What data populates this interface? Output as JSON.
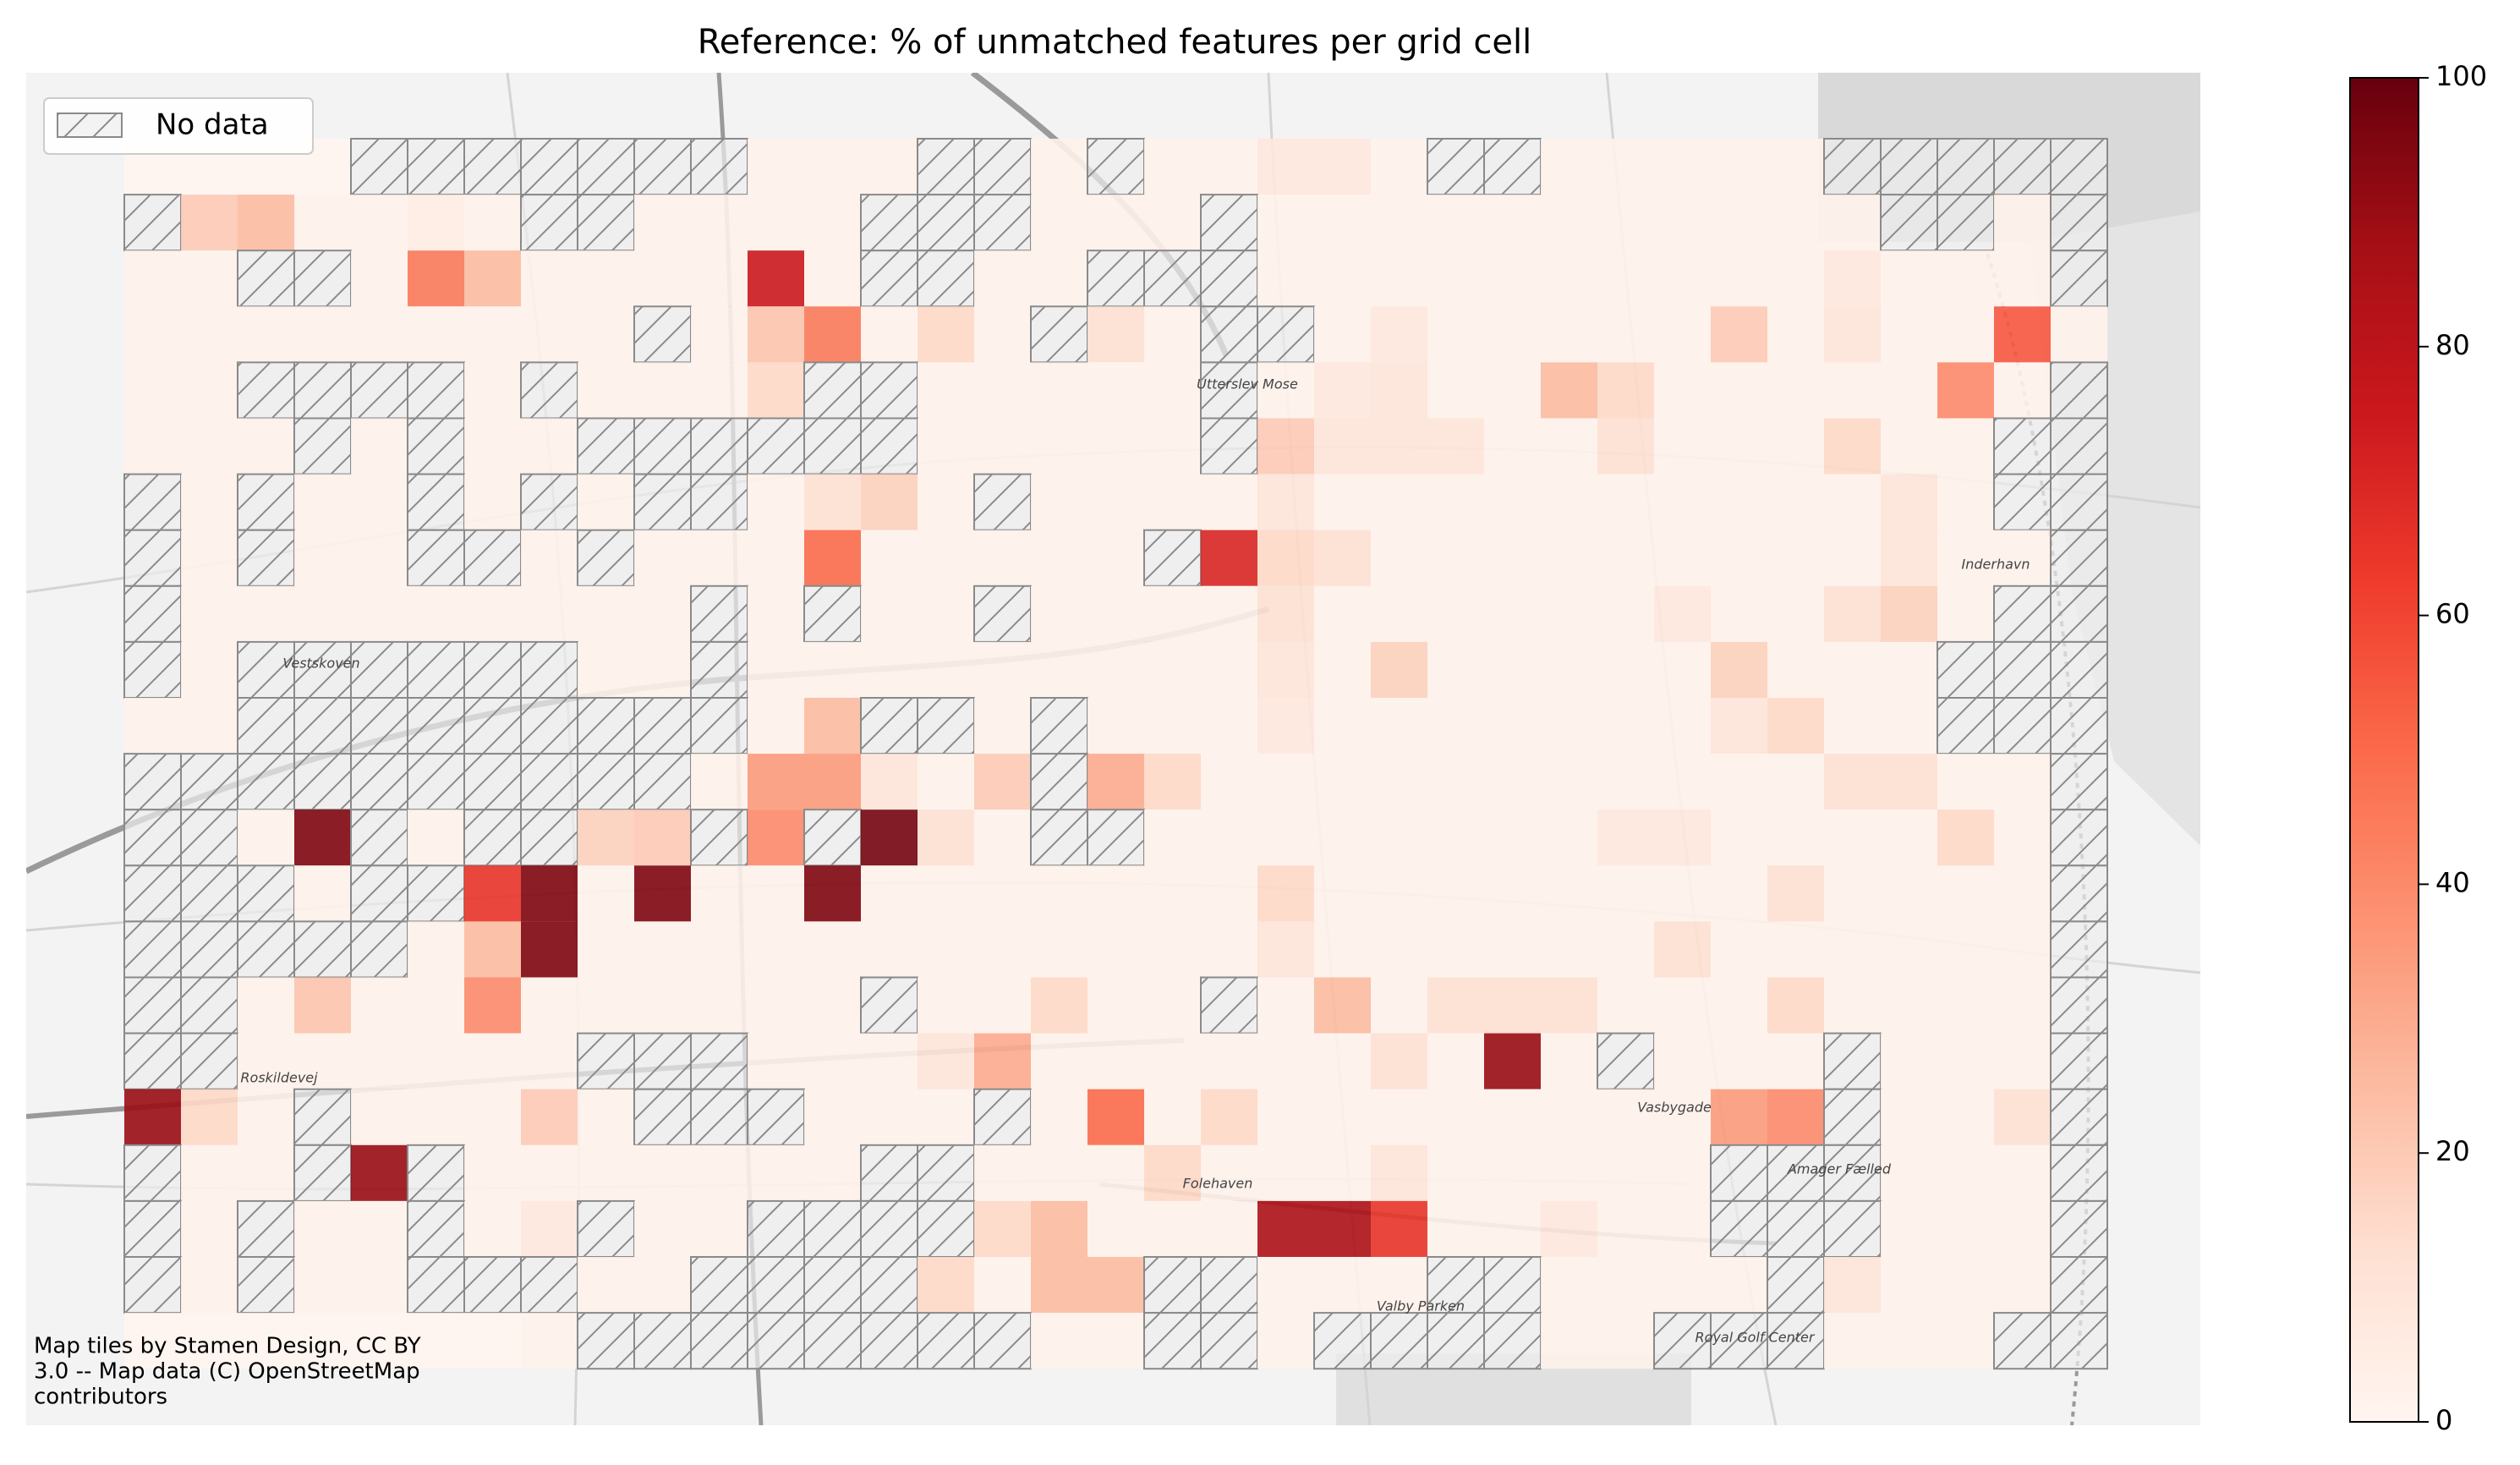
{
  "chart_data": {
    "type": "heatmap",
    "title": "Reference: % of unmatched features per grid cell",
    "legend": {
      "label": "No data",
      "corner": "upper left"
    },
    "clim": [
      0,
      100
    ],
    "cticks": [
      0,
      20,
      40,
      60,
      80,
      100
    ],
    "colormap": [
      "#fff5f0",
      "#fee0d2",
      "#fcbba1",
      "#fc9272",
      "#fb6a4a",
      "#ef3b2c",
      "#cb181d",
      "#a50f15",
      "#67000d"
    ],
    "attribution": [
      "Map tiles by Stamen Design, CC BY",
      "3.0 -- Map data (C) OpenStreetMap",
      "contributors"
    ],
    "map_labels": [
      "Utterslev Mose",
      "Vestskoven",
      "Amager Fælled",
      "Valby Parken",
      "Roskildevej",
      "Folehaven",
      "Vasbygade",
      "Inderhavn",
      "Royal Golf Center"
    ],
    "cells": [
      [
        0,
        0,
        0,
        0,
        null,
        null,
        null,
        null,
        null,
        null,
        null,
        2,
        2,
        2,
        null,
        null,
        2,
        null,
        2,
        2,
        8,
        8,
        2,
        null,
        null,
        2,
        2,
        2,
        2,
        2,
        null,
        null,
        null,
        null,
        null
      ],
      [
        null,
        20,
        25,
        2,
        2,
        5,
        2,
        null,
        null,
        2,
        2,
        2,
        2,
        null,
        null,
        null,
        2,
        2,
        2,
        null,
        2,
        2,
        2,
        2,
        2,
        2,
        2,
        2,
        2,
        2,
        2,
        null,
        null,
        2,
        null
      ],
      [
        2,
        2,
        null,
        null,
        2,
        45,
        25,
        2,
        2,
        2,
        2,
        75,
        2,
        null,
        null,
        2,
        2,
        null,
        null,
        null,
        2,
        2,
        2,
        2,
        2,
        2,
        2,
        2,
        2,
        2,
        8,
        2,
        2,
        2,
        null
      ],
      [
        2,
        2,
        2,
        2,
        2,
        2,
        2,
        2,
        2,
        null,
        2,
        22,
        45,
        2,
        15,
        2,
        null,
        12,
        2,
        null,
        null,
        2,
        8,
        2,
        2,
        2,
        2,
        2,
        20,
        2,
        10,
        2,
        2,
        55,
        2
      ],
      [
        2,
        2,
        null,
        null,
        null,
        null,
        2,
        null,
        2,
        2,
        2,
        15,
        null,
        null,
        2,
        2,
        2,
        2,
        2,
        null,
        2,
        8,
        10,
        2,
        2,
        25,
        15,
        2,
        2,
        2,
        2,
        2,
        40,
        2,
        null
      ],
      [
        2,
        2,
        2,
        null,
        2,
        null,
        2,
        2,
        null,
        null,
        null,
        null,
        null,
        null,
        2,
        2,
        2,
        2,
        2,
        null,
        20,
        10,
        10,
        10,
        2,
        2,
        12,
        2,
        2,
        2,
        15,
        2,
        2,
        null,
        null
      ],
      [
        null,
        2,
        null,
        2,
        2,
        null,
        2,
        null,
        2,
        null,
        null,
        2,
        12,
        18,
        2,
        null,
        2,
        2,
        2,
        2,
        10,
        2,
        2,
        2,
        2,
        2,
        2,
        2,
        2,
        2,
        2,
        10,
        2,
        null,
        null
      ],
      [
        null,
        2,
        null,
        2,
        2,
        null,
        null,
        2,
        null,
        2,
        2,
        2,
        50,
        2,
        2,
        2,
        2,
        2,
        null,
        70,
        15,
        12,
        2,
        2,
        2,
        2,
        2,
        2,
        2,
        2,
        2,
        10,
        2,
        2,
        null
      ],
      [
        null,
        2,
        2,
        2,
        2,
        2,
        2,
        2,
        2,
        2,
        null,
        2,
        null,
        2,
        2,
        null,
        2,
        2,
        2,
        2,
        12,
        2,
        2,
        2,
        2,
        2,
        2,
        8,
        2,
        2,
        12,
        18,
        2,
        null,
        null
      ],
      [
        null,
        2,
        null,
        null,
        null,
        null,
        null,
        null,
        2,
        2,
        null,
        2,
        2,
        2,
        2,
        2,
        2,
        2,
        2,
        2,
        10,
        2,
        18,
        2,
        2,
        2,
        2,
        2,
        18,
        2,
        2,
        2,
        null,
        null,
        null
      ],
      [
        2,
        2,
        null,
        null,
        null,
        null,
        null,
        null,
        null,
        null,
        null,
        2,
        25,
        null,
        null,
        2,
        null,
        2,
        2,
        2,
        8,
        2,
        2,
        2,
        2,
        2,
        2,
        2,
        10,
        15,
        2,
        2,
        null,
        null,
        null
      ],
      [
        null,
        null,
        null,
        null,
        null,
        null,
        null,
        null,
        null,
        null,
        2,
        35,
        35,
        10,
        2,
        20,
        null,
        30,
        15,
        2,
        2,
        2,
        2,
        2,
        2,
        2,
        2,
        2,
        2,
        2,
        12,
        12,
        2,
        2,
        null
      ],
      [
        null,
        null,
        2,
        95,
        null,
        2,
        null,
        null,
        18,
        20,
        null,
        40,
        null,
        97,
        12,
        2,
        null,
        null,
        2,
        2,
        2,
        2,
        2,
        2,
        2,
        2,
        8,
        8,
        2,
        2,
        2,
        2,
        15,
        2,
        null
      ],
      [
        null,
        null,
        null,
        2,
        null,
        null,
        65,
        95,
        2,
        95,
        2,
        2,
        95,
        2,
        2,
        2,
        2,
        2,
        2,
        2,
        15,
        2,
        2,
        2,
        2,
        2,
        2,
        2,
        2,
        12,
        2,
        2,
        2,
        2,
        null
      ],
      [
        null,
        null,
        null,
        null,
        null,
        2,
        25,
        95,
        2,
        2,
        2,
        2,
        2,
        2,
        2,
        2,
        2,
        2,
        2,
        2,
        10,
        2,
        2,
        2,
        2,
        2,
        2,
        12,
        2,
        2,
        2,
        2,
        2,
        2,
        null
      ],
      [
        null,
        null,
        2,
        22,
        2,
        2,
        40,
        2,
        2,
        2,
        2,
        2,
        2,
        null,
        2,
        2,
        15,
        2,
        2,
        null,
        2,
        25,
        2,
        12,
        12,
        12,
        2,
        2,
        2,
        15,
        2,
        2,
        2,
        2,
        null
      ],
      [
        null,
        null,
        2,
        2,
        2,
        2,
        2,
        2,
        null,
        null,
        null,
        2,
        2,
        2,
        10,
        30,
        2,
        2,
        2,
        2,
        2,
        2,
        12,
        2,
        90,
        2,
        null,
        2,
        2,
        2,
        null,
        2,
        2,
        2,
        null
      ],
      [
        90,
        15,
        2,
        null,
        2,
        2,
        2,
        20,
        2,
        null,
        null,
        null,
        2,
        2,
        2,
        null,
        2,
        50,
        2,
        15,
        2,
        2,
        2,
        2,
        2,
        2,
        2,
        2,
        35,
        40,
        null,
        2,
        2,
        12,
        null
      ],
      [
        null,
        2,
        2,
        null,
        90,
        null,
        2,
        2,
        2,
        2,
        2,
        2,
        2,
        null,
        null,
        2,
        2,
        2,
        15,
        2,
        2,
        2,
        10,
        2,
        2,
        2,
        2,
        2,
        null,
        null,
        null,
        2,
        2,
        2,
        null
      ],
      [
        null,
        2,
        null,
        2,
        2,
        null,
        2,
        8,
        null,
        2,
        2,
        null,
        null,
        null,
        null,
        15,
        25,
        2,
        2,
        2,
        85,
        85,
        65,
        2,
        2,
        8,
        2,
        2,
        null,
        null,
        null,
        2,
        2,
        2,
        null
      ],
      [
        null,
        2,
        null,
        2,
        2,
        null,
        null,
        null,
        2,
        2,
        null,
        null,
        null,
        null,
        15,
        2,
        25,
        25,
        null,
        null,
        2,
        2,
        2,
        null,
        null,
        2,
        2,
        2,
        2,
        null,
        10,
        2,
        2,
        2,
        null
      ],
      [
        0,
        0,
        0,
        0,
        0,
        0,
        0,
        2,
        null,
        null,
        null,
        null,
        null,
        null,
        null,
        null,
        2,
        2,
        null,
        null,
        2,
        null,
        null,
        null,
        null,
        2,
        2,
        null,
        null,
        null,
        2,
        2,
        2,
        null,
        null
      ]
    ]
  }
}
